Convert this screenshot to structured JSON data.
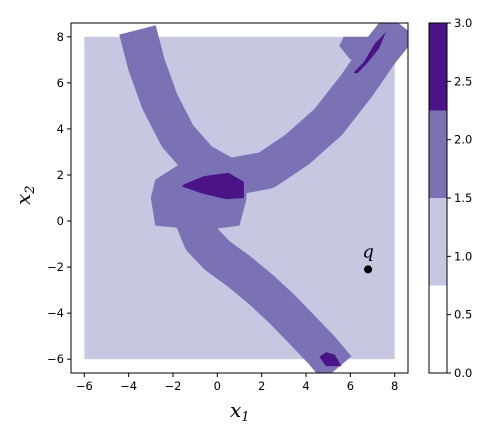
{
  "chart_data": {
    "type": "heatmap",
    "title": "",
    "xlabel": {
      "base": "x",
      "sub": "1"
    },
    "ylabel": {
      "base": "x",
      "sub": "2"
    },
    "xlim": [
      -6.6,
      8.6
    ],
    "ylim": [
      -6.6,
      8.6
    ],
    "x_ticks": [
      -6,
      -4,
      -2,
      0,
      2,
      4,
      6,
      8
    ],
    "y_ticks": [
      -6,
      -4,
      -2,
      0,
      2,
      4,
      6,
      8
    ],
    "x_tick_labels": [
      "−6",
      "−4",
      "−2",
      "0",
      "2",
      "4",
      "6",
      "8"
    ],
    "y_tick_labels": [
      "−6",
      "−4",
      "−2",
      "0",
      "2",
      "4",
      "6",
      "8"
    ],
    "domain": {
      "x": [
        -6,
        8
      ],
      "y": [
        -6,
        8
      ]
    },
    "levels": [
      {
        "range": [
          0.75,
          1.5
        ],
        "color": "#c6c7e1"
      },
      {
        "range": [
          1.5,
          2.25
        ],
        "color": "#7b72b6"
      },
      {
        "range": [
          2.25,
          3.0
        ],
        "color": "#4a1486"
      }
    ],
    "annotation": {
      "label": "q",
      "x": 6.8,
      "y": -2.1
    },
    "colorbar": {
      "min": 0.0,
      "max": 3.0,
      "bands": [
        {
          "from": 0.0,
          "to": 0.75,
          "color": "#ffffff"
        },
        {
          "from": 0.75,
          "to": 1.5,
          "color": "#c6c7e1"
        },
        {
          "from": 1.5,
          "to": 2.25,
          "color": "#7b72b6"
        },
        {
          "from": 2.25,
          "to": 3.0,
          "color": "#4a1486"
        }
      ],
      "ticks": [
        0.0,
        0.5,
        1.0,
        1.5,
        2.0,
        2.5,
        3.0
      ],
      "tick_labels": [
        "0.0",
        "0.5",
        "1.0",
        "1.5",
        "2.0",
        "2.5",
        "3.0"
      ]
    }
  }
}
